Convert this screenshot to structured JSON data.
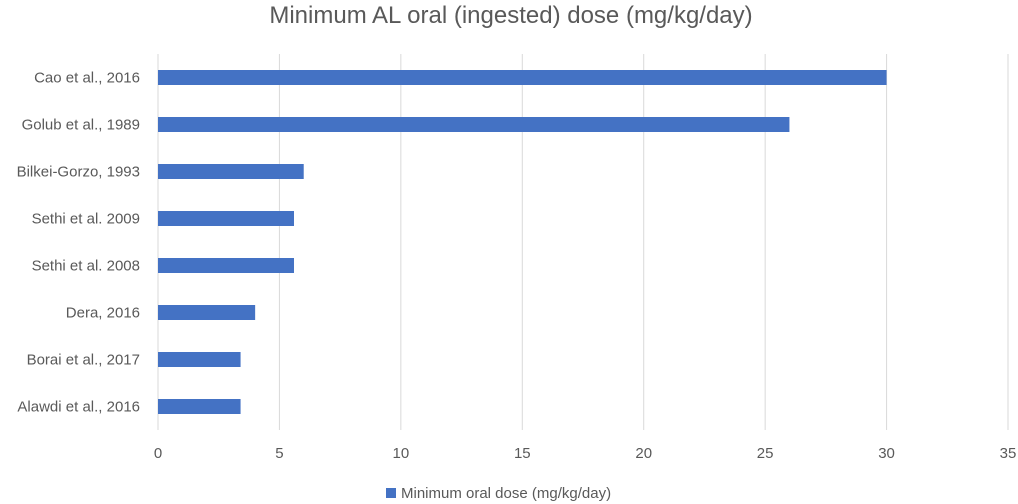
{
  "chart_data": {
    "type": "bar",
    "orientation": "horizontal",
    "title": "Minimum AL oral (ingested) dose (mg/kg/day)",
    "categories": [
      "Cao et al., 2016",
      "Golub et al., 1989",
      "Bilkei-Gorzo, 1993",
      "Sethi et al. 2009",
      "Sethi et al. 2008",
      "Dera, 2016",
      "Borai et al., 2017",
      "Alawdi et al., 2016"
    ],
    "series": [
      {
        "name": "Minimum oral dose (mg/kg/day)",
        "values": [
          30,
          26,
          6,
          5.6,
          5.6,
          4,
          3.4,
          3.4
        ]
      }
    ],
    "xlim": [
      0,
      35
    ],
    "xticks": [
      0,
      5,
      10,
      15,
      20,
      25,
      30,
      35
    ],
    "grid": "vertical",
    "legend_position": "bottom",
    "bar_color": "#4472C4"
  }
}
